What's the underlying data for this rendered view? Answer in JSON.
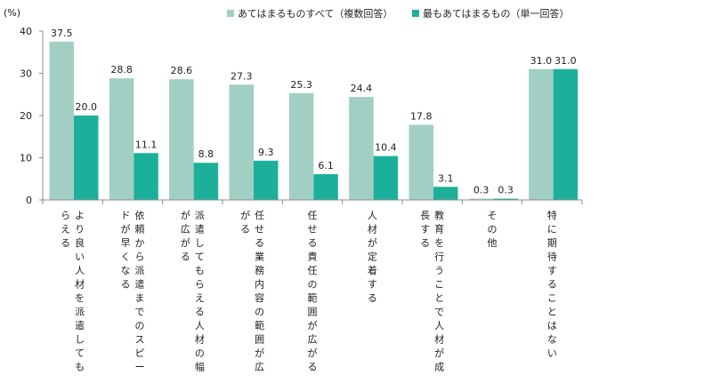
{
  "chart_data": {
    "type": "bar",
    "unit_label": "(%)",
    "ylim": [
      0,
      40
    ],
    "yticks": [
      "0",
      "10",
      "20",
      "30",
      "40"
    ],
    "categories": [
      {
        "lines": [
          "より良い人材を派遣しても",
          "らえる"
        ]
      },
      {
        "lines": [
          "依頼から派遣までのスピー",
          "ドが早くなる"
        ]
      },
      {
        "lines": [
          "派遣してもらえる人材の幅",
          "が広がる"
        ]
      },
      {
        "lines": [
          "任せる業務内容の範囲が広",
          "がる"
        ]
      },
      {
        "lines": [
          "任せる責任の範囲が広がる"
        ]
      },
      {
        "lines": [
          "人材が定着する"
        ]
      },
      {
        "lines": [
          "教育を行うことで人材が成",
          "長する"
        ]
      },
      {
        "lines": [
          "その他"
        ]
      },
      {
        "lines": [
          "特に期待することはない"
        ]
      }
    ],
    "series": [
      {
        "name": "あてはまるものすべて（複数回答）",
        "color": "#a2cfc3",
        "values": [
          37.5,
          28.8,
          28.6,
          27.3,
          25.3,
          24.4,
          17.8,
          0.3,
          31.0
        ],
        "labels": [
          "37.5",
          "28.8",
          "28.6",
          "27.3",
          "25.3",
          "24.4",
          "17.8",
          "0.3",
          "31.0"
        ]
      },
      {
        "name": "最もあてはまるもの（単一回答）",
        "color": "#1cb09b",
        "values": [
          20.0,
          11.1,
          8.8,
          9.3,
          6.1,
          10.4,
          3.1,
          0.3,
          31.0
        ],
        "labels": [
          "20.0",
          "11.1",
          "8.8",
          "9.3",
          "6.1",
          "10.4",
          "3.1",
          "0.3",
          "31.0"
        ]
      }
    ],
    "legend_position": "top-center",
    "grid": false
  }
}
